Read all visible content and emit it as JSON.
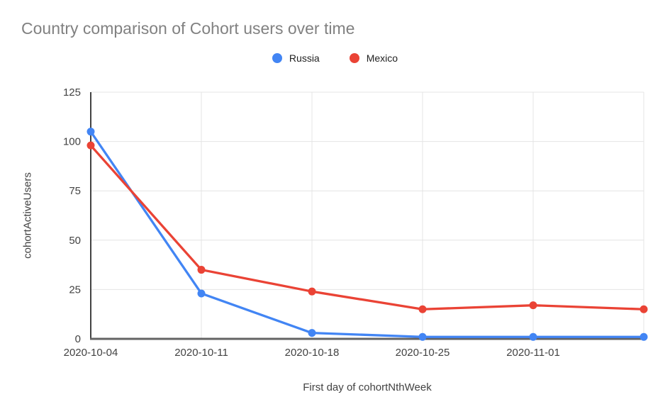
{
  "chart_data": {
    "type": "line",
    "title": "Country comparison of Cohort users over time",
    "xlabel": "First day of cohortNthWeek",
    "ylabel": "cohortActiveUsers",
    "categories": [
      "2020-10-04",
      "2020-10-11",
      "2020-10-18",
      "2020-10-25",
      "2020-11-01",
      ""
    ],
    "series": [
      {
        "name": "Russia",
        "color": "#4285F4",
        "values": [
          105,
          23,
          3,
          1,
          1,
          1
        ]
      },
      {
        "name": "Mexico",
        "color": "#EA4335",
        "values": [
          98,
          35,
          24,
          15,
          17,
          15
        ]
      }
    ],
    "yticks": [
      0,
      25,
      50,
      75,
      100,
      125
    ],
    "ylim": [
      0,
      125
    ],
    "grid": "both",
    "legend_position": "top"
  },
  "theme": {
    "background": "#ffffff",
    "title_color": "#818181",
    "tick_color": "#424242",
    "axis_title_color": "#424242",
    "legend_text_color": "#212121",
    "grid_color": "#e4e4e4",
    "y_axis_color": "#424242",
    "x_baseline_color": "#636363"
  }
}
